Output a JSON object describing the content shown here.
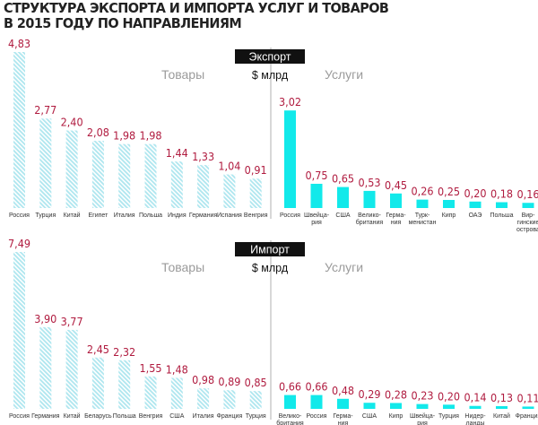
{
  "title_lines": [
    "Структура экспорта и импорта услуг и товаров",
    "в 2015 году по направлениям"
  ],
  "colors": {
    "goods_hatch": "#aee6ef",
    "services_bar": "#12e9ea",
    "value_text": "#b01b3f",
    "header_bg": "#111111"
  },
  "chart_data": [
    {
      "type": "bar",
      "panel": "Экспорт",
      "unit": "$ млрд",
      "groups": [
        "Товары",
        "Услуги"
      ],
      "ylim": [
        0,
        4.83
      ],
      "series": [
        {
          "name": "Товары",
          "categories": [
            [
              "Россия"
            ],
            [
              "Турция"
            ],
            [
              "Китай"
            ],
            [
              "Египет"
            ],
            [
              "Италия"
            ],
            [
              "Польша"
            ],
            [
              "Индия"
            ],
            [
              "Германия"
            ],
            [
              "Испания"
            ],
            [
              "Венгрия"
            ]
          ],
          "values": [
            4.83,
            2.77,
            2.4,
            2.08,
            1.98,
            1.98,
            1.44,
            1.33,
            1.04,
            0.91
          ],
          "labels": [
            "4,83",
            "2,77",
            "2,40",
            "2,08",
            "1,98",
            "1,98",
            "1,44",
            "1,33",
            "1,04",
            "0,91"
          ]
        },
        {
          "name": "Услуги",
          "categories": [
            [
              "Россия"
            ],
            [
              "Швейца-",
              "рия"
            ],
            [
              "США"
            ],
            [
              "Велико-",
              "британия"
            ],
            [
              "Герма-",
              "ния"
            ],
            [
              "Турк-",
              "менистан"
            ],
            [
              "Кипр"
            ],
            [
              "ОАЭ"
            ],
            [
              "Польша"
            ],
            [
              "Вир-",
              "гинские",
              "острова"
            ]
          ],
          "values": [
            3.02,
            0.75,
            0.65,
            0.53,
            0.45,
            0.26,
            0.25,
            0.2,
            0.18,
            0.16
          ],
          "labels": [
            "3,02",
            "0,75",
            "0,65",
            "0,53",
            "0,45",
            "0,26",
            "0,25",
            "0,20",
            "0,18",
            "0,16"
          ]
        }
      ]
    },
    {
      "type": "bar",
      "panel": "Импорт",
      "unit": "$ млрд",
      "groups": [
        "Товары",
        "Услуги"
      ],
      "ylim": [
        0,
        7.49
      ],
      "series": [
        {
          "name": "Товары",
          "categories": [
            [
              "Россия"
            ],
            [
              "Германия"
            ],
            [
              "Китай"
            ],
            [
              "Беларусь"
            ],
            [
              "Польша"
            ],
            [
              "Венгрия"
            ],
            [
              "США"
            ],
            [
              "Италия"
            ],
            [
              "Франция"
            ],
            [
              "Турция"
            ]
          ],
          "values": [
            7.49,
            3.9,
            3.77,
            2.45,
            2.32,
            1.55,
            1.48,
            0.98,
            0.89,
            0.85
          ],
          "labels": [
            "7,49",
            "3,90",
            "3,77",
            "2,45",
            "2,32",
            "1,55",
            "1,48",
            "0,98",
            "0,89",
            "0,85"
          ]
        },
        {
          "name": "Услуги",
          "categories": [
            [
              "Велико-",
              "британия"
            ],
            [
              "Россия"
            ],
            [
              "Герма-",
              "ния"
            ],
            [
              "США"
            ],
            [
              "Кипр"
            ],
            [
              "Швейца-",
              "рия"
            ],
            [
              "Турция"
            ],
            [
              "Нидер-",
              "ланды"
            ],
            [
              "Китай"
            ],
            [
              "Франция"
            ]
          ],
          "values": [
            0.66,
            0.66,
            0.48,
            0.29,
            0.28,
            0.23,
            0.2,
            0.14,
            0.13,
            0.11
          ],
          "labels": [
            "0,66",
            "0,66",
            "0,48",
            "0,29",
            "0,28",
            "0,23",
            "0,20",
            "0,14",
            "0,13",
            "0,11"
          ]
        }
      ]
    }
  ]
}
